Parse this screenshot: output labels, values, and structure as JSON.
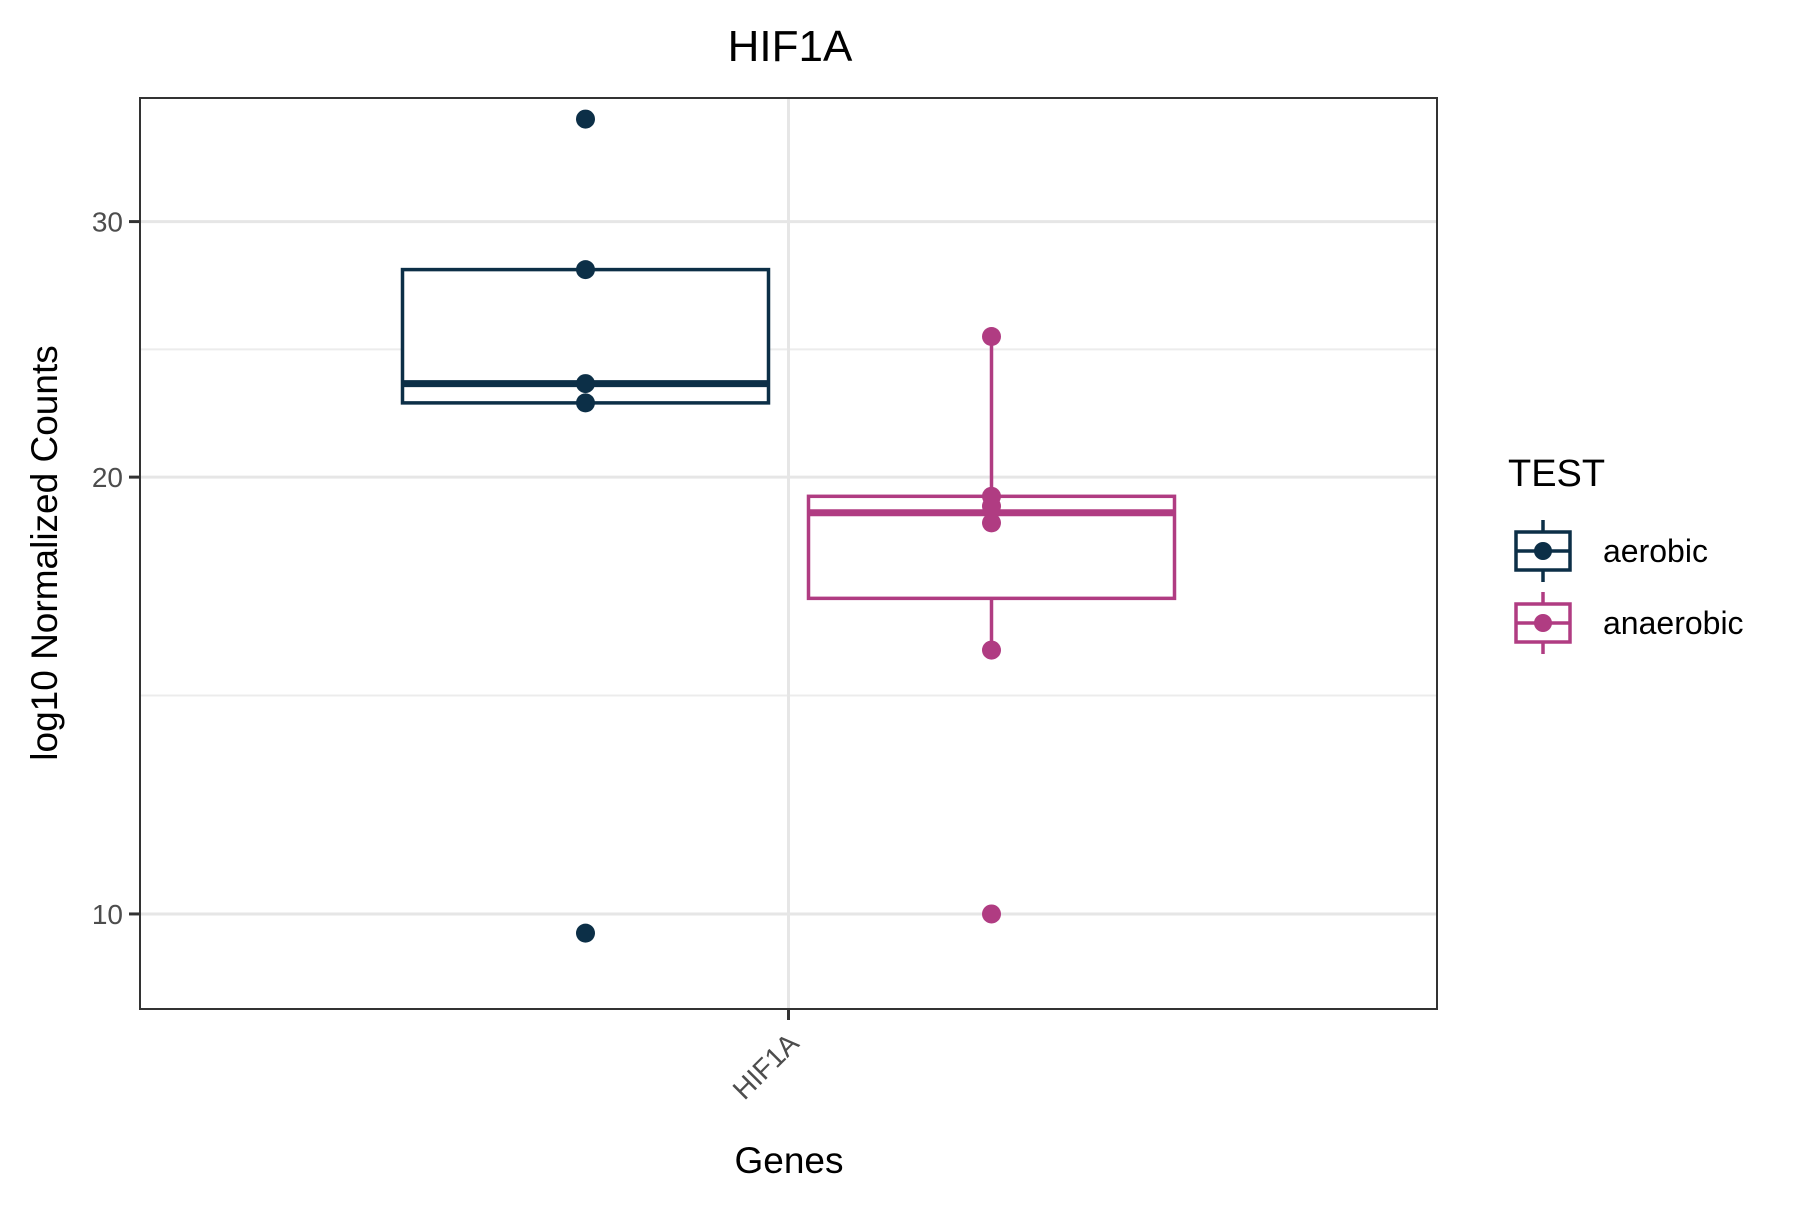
{
  "chart_data": {
    "type": "box",
    "title": "HIF1A",
    "xlabel": "Genes",
    "ylabel": "log10 Normalized Counts",
    "categories": [
      "HIF1A"
    ],
    "y_scale": "log10",
    "ylim": [
      8.6,
      36.5
    ],
    "y_ticks": [
      10,
      20,
      30
    ],
    "y_tick_labels": [
      "10",
      "20",
      "30"
    ],
    "x_tick_rotation": 45,
    "grid": true,
    "legend": {
      "title": "TEST",
      "position": "right"
    },
    "series": [
      {
        "name": "aerobic",
        "color": "#0c2f47",
        "box": {
          "lower": 22.5,
          "median": 23.2,
          "upper": 27.8,
          "whisker_low": 22.5,
          "whisker_high": 27.8
        },
        "points": [
          35.3,
          27.8,
          23.2,
          22.5,
          9.7
        ]
      },
      {
        "name": "anaerobic",
        "color": "#b03c82",
        "box": {
          "lower": 16.5,
          "median": 18.9,
          "upper": 19.4,
          "whisker_low": 15.2,
          "whisker_high": 25.0
        },
        "points": [
          25.0,
          19.4,
          19.1,
          18.6,
          15.2,
          10.0
        ]
      }
    ]
  }
}
